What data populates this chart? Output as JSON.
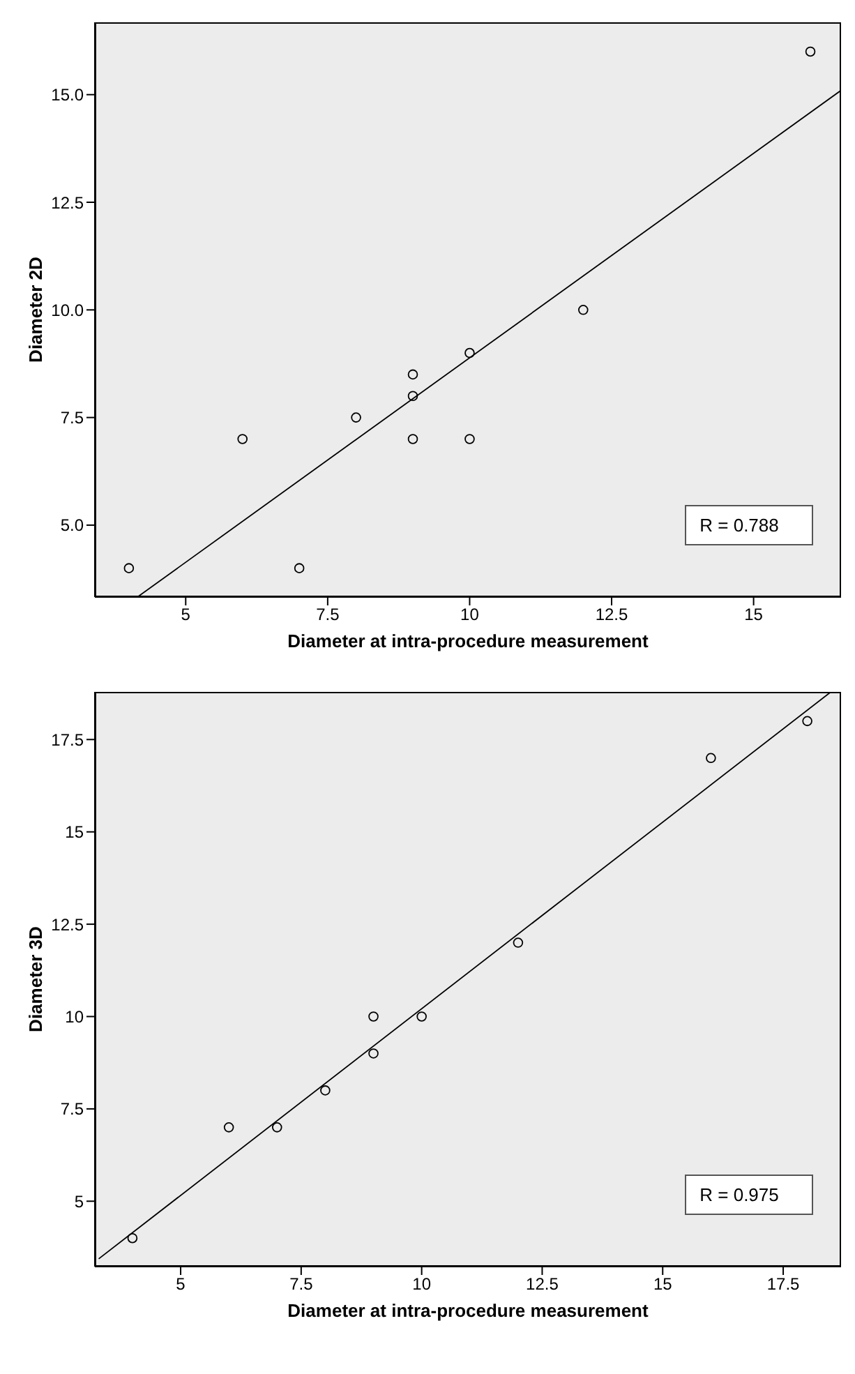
{
  "chart_data": [
    {
      "type": "scatter",
      "xlabel": "Diameter at intra-procedure measurement",
      "ylabel": "Diameter 2D",
      "xlim": [
        3.4,
        16.54
      ],
      "ylim": [
        3.33,
        16.68
      ],
      "xticks": [
        5,
        7.5,
        10,
        12.5,
        15
      ],
      "yticks": [
        {
          "value": 5,
          "label": "5.0"
        },
        7.5,
        {
          "value": 10,
          "label": "10.0"
        },
        12.5,
        {
          "value": 15,
          "label": "15.0"
        }
      ],
      "marker": "circle",
      "grid": false,
      "legend": false,
      "annotations": [
        "R = 0.788"
      ],
      "series": [
        {
          "type": "scatter",
          "color": "#000000",
          "x": [
            4,
            6,
            7,
            8,
            9,
            9,
            9,
            10,
            10,
            12,
            16
          ],
          "values": [
            4,
            7,
            4,
            7.5,
            8.5,
            8,
            7,
            9,
            7,
            10,
            16
          ]
        },
        {
          "type": "line",
          "marker": "none",
          "color": "#000000",
          "x": [
            4.15,
            16.54
          ],
          "values": [
            3.33,
            15.1
          ]
        }
      ]
    },
    {
      "type": "scatter",
      "xlabel": "Diameter at intra-procedure measurement",
      "ylabel": "Diameter 3D",
      "xlim": [
        3.22,
        18.7
      ],
      "ylim": [
        3.23,
        18.79
      ],
      "xticks": [
        5,
        7.5,
        10,
        12.5,
        15,
        17.5
      ],
      "yticks": [
        5,
        7.5,
        10,
        12.5,
        15,
        17.5
      ],
      "marker": "circle",
      "grid": false,
      "legend": false,
      "annotations": [
        "R = 0.975"
      ],
      "series": [
        {
          "type": "scatter",
          "color": "#000000",
          "x": [
            4,
            6,
            7,
            8,
            9,
            9,
            10,
            12,
            16,
            18
          ],
          "values": [
            4,
            7,
            7,
            8,
            10,
            9,
            10,
            12,
            17,
            18
          ]
        },
        {
          "type": "line",
          "marker": "none",
          "color": "#000000",
          "x": [
            3.3,
            18.49
          ],
          "values": [
            3.44,
            18.79
          ]
        }
      ]
    }
  ]
}
